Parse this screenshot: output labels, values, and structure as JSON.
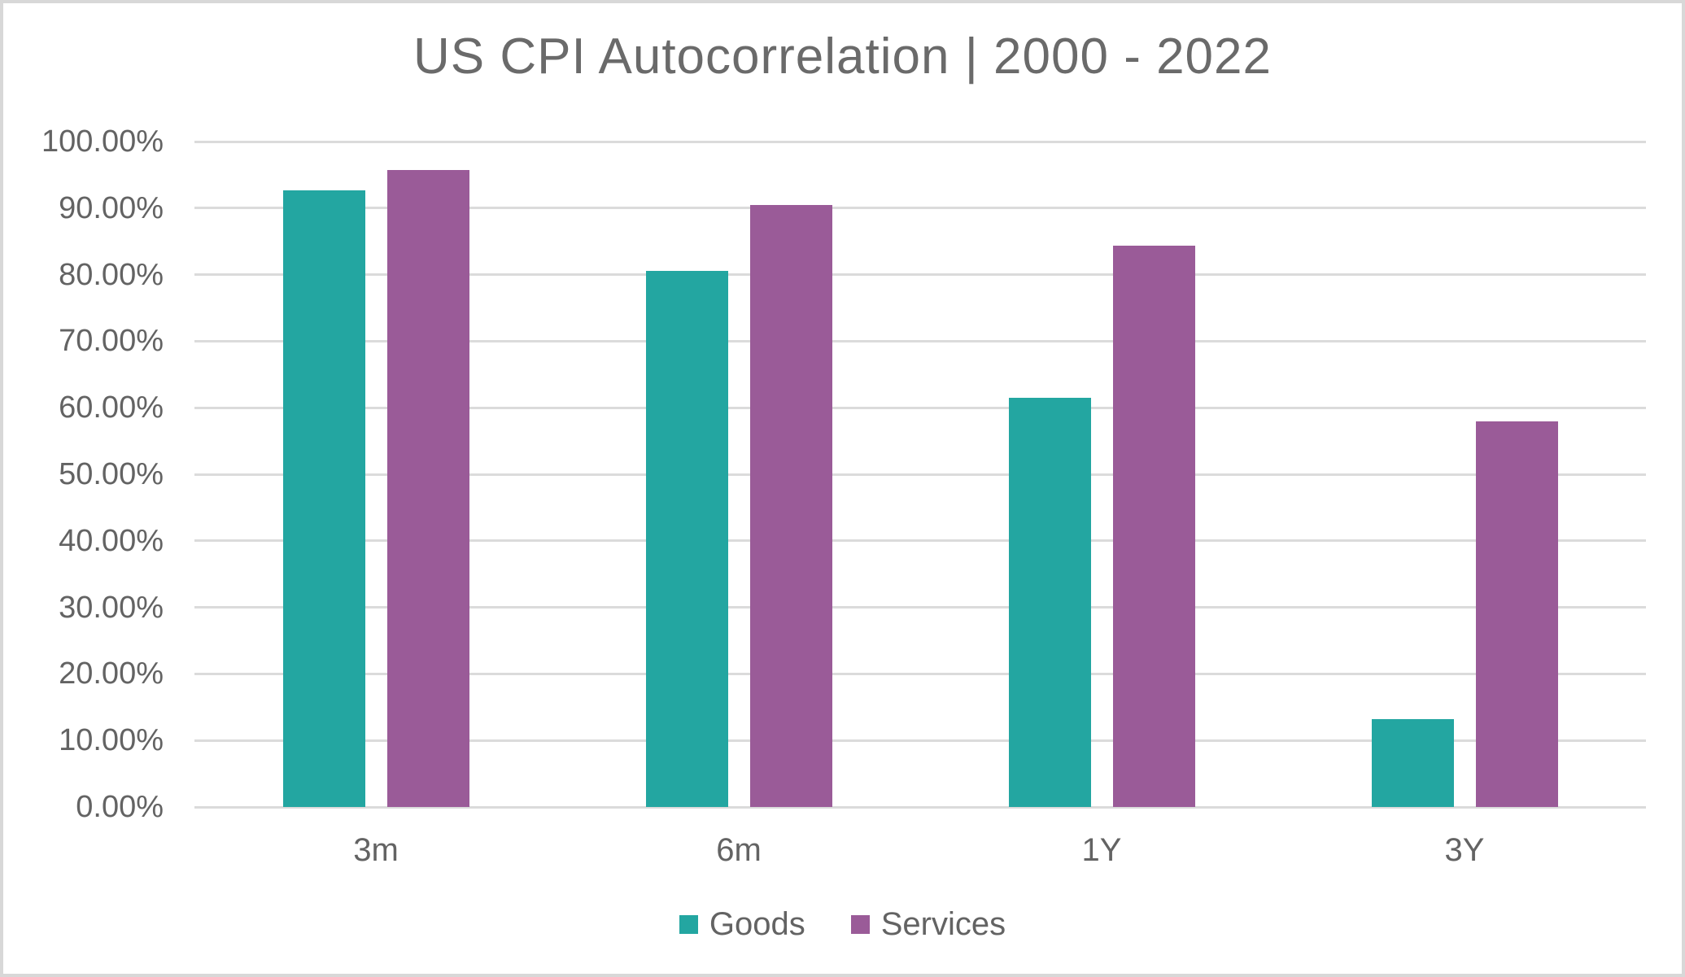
{
  "title": "US CPI Autocorrelation | 2000 - 2022",
  "colors": {
    "goods": "#23A6A1",
    "services": "#9A5B98",
    "gridline": "#DBDBDB",
    "text": "#636363",
    "frame_border": "#D8D8D8",
    "background": "#FFFFFF"
  },
  "chart_data": {
    "type": "bar",
    "title": "US CPI Autocorrelation | 2000 - 2022",
    "categories": [
      "3m",
      "6m",
      "1Y",
      "3Y"
    ],
    "series": [
      {
        "name": "Goods",
        "color": "#23A6A1",
        "values": [
          92.7,
          80.6,
          61.5,
          13.2
        ]
      },
      {
        "name": "Services",
        "color": "#9A5B98",
        "values": [
          95.7,
          90.5,
          84.4,
          58.0
        ]
      }
    ],
    "xlabel": "",
    "ylabel": "",
    "ylim": [
      0,
      100
    ],
    "y_tick_step": 10,
    "y_ticks": [
      "0.00%",
      "10.00%",
      "20.00%",
      "30.00%",
      "40.00%",
      "50.00%",
      "60.00%",
      "70.00%",
      "80.00%",
      "90.00%",
      "100.00%"
    ],
    "grid": true,
    "legend_position": "bottom"
  }
}
